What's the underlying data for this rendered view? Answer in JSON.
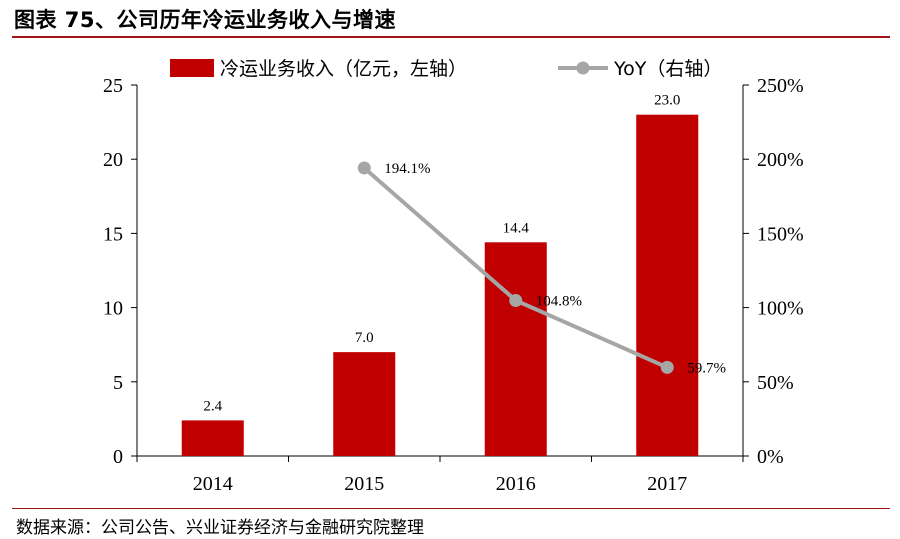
{
  "figure_title": "图表 75、公司历年冷运业务收入与增速",
  "source_note": "数据来源：公司公告、兴业证券经济与金融研究院整理",
  "colors": {
    "bar": "#c00000",
    "line": "#a6a6a6",
    "rule": "#a31515"
  },
  "chart_data": {
    "type": "bar",
    "categories": [
      "2014",
      "2015",
      "2016",
      "2017"
    ],
    "series": [
      {
        "name": "冷运业务收入（亿元，左轴）",
        "type": "bar",
        "axis": "left",
        "values": [
          2.4,
          7.0,
          14.4,
          23.0
        ],
        "labels": [
          "2.4",
          "7.0",
          "14.4",
          "23.0"
        ]
      },
      {
        "name": "YoY（右轴）",
        "type": "line",
        "axis": "right",
        "values": [
          null,
          194.1,
          104.8,
          59.7
        ],
        "labels": [
          "",
          "194.1%",
          "104.8%",
          "59.7%"
        ]
      }
    ],
    "ylim_left": [
      0,
      25
    ],
    "yticks_left": [
      "0",
      "5",
      "10",
      "15",
      "20",
      "25"
    ],
    "ylim_right": [
      0,
      250
    ],
    "yticks_right": [
      "0%",
      "50%",
      "100%",
      "150%",
      "200%",
      "250%"
    ],
    "legend_position": "top",
    "grid": false
  }
}
